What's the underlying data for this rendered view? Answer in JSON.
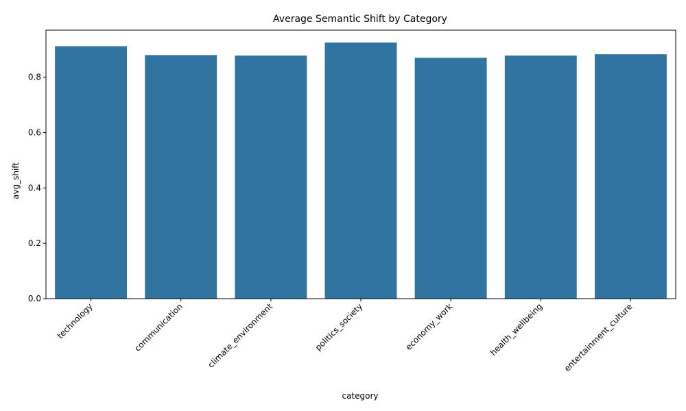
{
  "chart_data": {
    "type": "bar",
    "title": "Average Semantic Shift by Category",
    "xlabel": "category",
    "ylabel": "avg_shift",
    "categories": [
      "technology",
      "communication",
      "climate_environment",
      "politics_society",
      "economy_work",
      "health_wellbeing",
      "entertainment_culture"
    ],
    "values": [
      0.912,
      0.88,
      0.878,
      0.925,
      0.87,
      0.878,
      0.883
    ],
    "ylim": [
      0,
      0.97
    ],
    "yticks": [
      0.0,
      0.2,
      0.4,
      0.6,
      0.8
    ],
    "ytick_labels": [
      "0.0",
      "0.2",
      "0.4",
      "0.6",
      "0.8"
    ],
    "grid": false,
    "bar_color": "#3274a1"
  }
}
